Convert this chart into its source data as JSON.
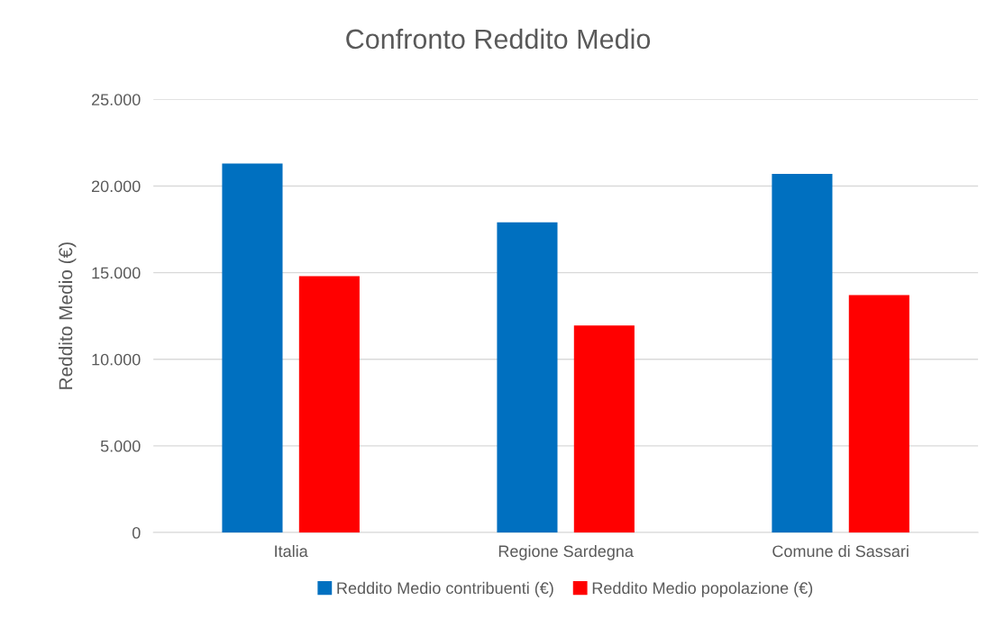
{
  "chart_data": {
    "type": "bar",
    "title": "Confronto Reddito Medio",
    "ylabel": "Reddito Medio (€)",
    "categories": [
      "Italia",
      "Regione Sardegna",
      "Comune di Sassari"
    ],
    "series": [
      {
        "name": "Reddito Medio contribuenti (€)",
        "color": "#0070c0",
        "values": [
          21300,
          17900,
          20700
        ]
      },
      {
        "name": "Reddito Medio popolazione (€)",
        "color": "#ff0000",
        "values": [
          14800,
          11950,
          13700
        ]
      }
    ],
    "ylim": [
      0,
      25000
    ],
    "yticks": [
      0,
      {
        "value": 5000,
        "label": "5.000"
      },
      {
        "value": 10000,
        "label": "10.000"
      },
      {
        "value": 15000,
        "label": "15.000"
      },
      {
        "value": 20000,
        "label": "20.000"
      },
      {
        "value": 25000,
        "label": "25.000"
      }
    ],
    "grid": "y",
    "legend": "bottom"
  }
}
